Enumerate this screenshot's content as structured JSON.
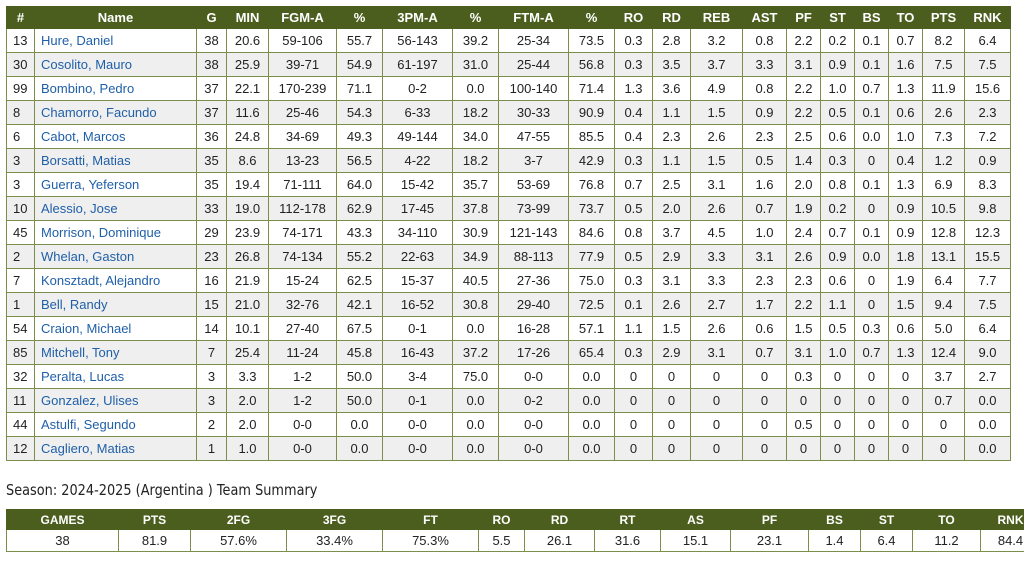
{
  "roster": {
    "headers": [
      "#",
      "Name",
      "G",
      "MIN",
      "FGM-A",
      "%",
      "3PM-A",
      "%",
      "FTM-A",
      "%",
      "RO",
      "RD",
      "REB",
      "AST",
      "PF",
      "ST",
      "BS",
      "TO",
      "PTS",
      "RNK"
    ],
    "rows": [
      [
        "13",
        "Hure, Daniel",
        "38",
        "20.6",
        "59-106",
        "55.7",
        "56-143",
        "39.2",
        "25-34",
        "73.5",
        "0.3",
        "2.8",
        "3.2",
        "0.8",
        "2.2",
        "0.2",
        "0.1",
        "0.7",
        "8.2",
        "6.4"
      ],
      [
        "30",
        "Cosolito, Mauro",
        "38",
        "25.9",
        "39-71",
        "54.9",
        "61-197",
        "31.0",
        "25-44",
        "56.8",
        "0.3",
        "3.5",
        "3.7",
        "3.3",
        "3.1",
        "0.9",
        "0.1",
        "1.6",
        "7.5",
        "7.5"
      ],
      [
        "99",
        "Bombino, Pedro",
        "37",
        "22.1",
        "170-239",
        "71.1",
        "0-2",
        "0.0",
        "100-140",
        "71.4",
        "1.3",
        "3.6",
        "4.9",
        "0.8",
        "2.2",
        "1.0",
        "0.7",
        "1.3",
        "11.9",
        "15.6"
      ],
      [
        "8",
        "Chamorro, Facundo",
        "37",
        "11.6",
        "25-46",
        "54.3",
        "6-33",
        "18.2",
        "30-33",
        "90.9",
        "0.4",
        "1.1",
        "1.5",
        "0.9",
        "2.2",
        "0.5",
        "0.1",
        "0.6",
        "2.6",
        "2.3"
      ],
      [
        "6",
        "Cabot, Marcos",
        "36",
        "24.8",
        "34-69",
        "49.3",
        "49-144",
        "34.0",
        "47-55",
        "85.5",
        "0.4",
        "2.3",
        "2.6",
        "2.3",
        "2.5",
        "0.6",
        "0.0",
        "1.0",
        "7.3",
        "7.2"
      ],
      [
        "3",
        "Borsatti, Matias",
        "35",
        "8.6",
        "13-23",
        "56.5",
        "4-22",
        "18.2",
        "3-7",
        "42.9",
        "0.3",
        "1.1",
        "1.5",
        "0.5",
        "1.4",
        "0.3",
        "0",
        "0.4",
        "1.2",
        "0.9"
      ],
      [
        "3",
        "Guerra, Yeferson",
        "35",
        "19.4",
        "71-111",
        "64.0",
        "15-42",
        "35.7",
        "53-69",
        "76.8",
        "0.7",
        "2.5",
        "3.1",
        "1.6",
        "2.0",
        "0.8",
        "0.1",
        "1.3",
        "6.9",
        "8.3"
      ],
      [
        "10",
        "Alessio, Jose",
        "33",
        "19.0",
        "112-178",
        "62.9",
        "17-45",
        "37.8",
        "73-99",
        "73.7",
        "0.5",
        "2.0",
        "2.6",
        "0.7",
        "1.9",
        "0.2",
        "0",
        "0.9",
        "10.5",
        "9.8"
      ],
      [
        "45",
        "Morrison, Dominique",
        "29",
        "23.9",
        "74-171",
        "43.3",
        "34-110",
        "30.9",
        "121-143",
        "84.6",
        "0.8",
        "3.7",
        "4.5",
        "1.0",
        "2.4",
        "0.7",
        "0.1",
        "0.9",
        "12.8",
        "12.3"
      ],
      [
        "2",
        "Whelan, Gaston",
        "23",
        "26.8",
        "74-134",
        "55.2",
        "22-63",
        "34.9",
        "88-113",
        "77.9",
        "0.5",
        "2.9",
        "3.3",
        "3.1",
        "2.6",
        "0.9",
        "0.0",
        "1.8",
        "13.1",
        "15.5"
      ],
      [
        "7",
        "Konsztadt, Alejandro",
        "16",
        "21.9",
        "15-24",
        "62.5",
        "15-37",
        "40.5",
        "27-36",
        "75.0",
        "0.3",
        "3.1",
        "3.3",
        "2.3",
        "2.3",
        "0.6",
        "0",
        "1.9",
        "6.4",
        "7.7"
      ],
      [
        "1",
        "Bell, Randy",
        "15",
        "21.0",
        "32-76",
        "42.1",
        "16-52",
        "30.8",
        "29-40",
        "72.5",
        "0.1",
        "2.6",
        "2.7",
        "1.7",
        "2.2",
        "1.1",
        "0",
        "1.5",
        "9.4",
        "7.5"
      ],
      [
        "54",
        "Craion, Michael",
        "14",
        "10.1",
        "27-40",
        "67.5",
        "0-1",
        "0.0",
        "16-28",
        "57.1",
        "1.1",
        "1.5",
        "2.6",
        "0.6",
        "1.5",
        "0.5",
        "0.3",
        "0.6",
        "5.0",
        "6.4"
      ],
      [
        "85",
        "Mitchell, Tony",
        "7",
        "25.4",
        "11-24",
        "45.8",
        "16-43",
        "37.2",
        "17-26",
        "65.4",
        "0.3",
        "2.9",
        "3.1",
        "0.7",
        "3.1",
        "1.0",
        "0.7",
        "1.3",
        "12.4",
        "9.0"
      ],
      [
        "32",
        "Peralta, Lucas",
        "3",
        "3.3",
        "1-2",
        "50.0",
        "3-4",
        "75.0",
        "0-0",
        "0.0",
        "0",
        "0",
        "0",
        "0",
        "0.3",
        "0",
        "0",
        "0",
        "3.7",
        "2.7"
      ],
      [
        "11",
        "Gonzalez, Ulises",
        "3",
        "2.0",
        "1-2",
        "50.0",
        "0-1",
        "0.0",
        "0-2",
        "0.0",
        "0",
        "0",
        "0",
        "0",
        "0",
        "0",
        "0",
        "0",
        "0.7",
        "0.0"
      ],
      [
        "44",
        "Astulfi, Segundo",
        "2",
        "2.0",
        "0-0",
        "0.0",
        "0-0",
        "0.0",
        "0-0",
        "0.0",
        "0",
        "0",
        "0",
        "0",
        "0.5",
        "0",
        "0",
        "0",
        "0",
        "0.0"
      ],
      [
        "12",
        "Cagliero, Matias",
        "1",
        "1.0",
        "0-0",
        "0.0",
        "0-0",
        "0.0",
        "0-0",
        "0.0",
        "0",
        "0",
        "0",
        "0",
        "0",
        "0",
        "0",
        "0",
        "0",
        "0.0"
      ]
    ]
  },
  "summary": {
    "title": "Season: 2024-2025 (Argentina ) Team Summary",
    "headers": [
      "GAMES",
      "PTS",
      "2FG",
      "3FG",
      "FT",
      "RO",
      "RD",
      "RT",
      "AS",
      "PF",
      "BS",
      "ST",
      "TO",
      "RNK"
    ],
    "values": [
      "38",
      "81.9",
      "57.6%",
      "33.4%",
      "75.3%",
      "5.5",
      "26.1",
      "31.6",
      "15.1",
      "23.1",
      "1.4",
      "6.4",
      "11.2",
      "84.4"
    ]
  },
  "colors": {
    "header_bg": "#4b5e1e",
    "border": "#7c8f4a",
    "name_link": "#1f5fa8",
    "alt_row": "#efefef"
  }
}
